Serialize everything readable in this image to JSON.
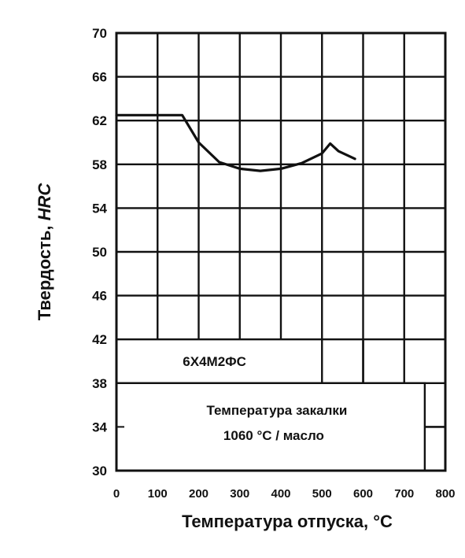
{
  "chart_data": {
    "type": "line",
    "title": "",
    "xlabel": "Температура отпуска, °С",
    "ylabel_prefix": "Твердость, ",
    "ylabel_italic": "HRC",
    "x_ticks": [
      "0",
      "100",
      "200",
      "300",
      "400",
      "500",
      "600",
      "700",
      "800"
    ],
    "y_ticks": [
      "70",
      "66",
      "62",
      "58",
      "54",
      "50",
      "46",
      "42",
      "38",
      "34",
      "30"
    ],
    "xlim": [
      0,
      800
    ],
    "ylim": [
      30,
      70
    ],
    "grid": true,
    "series": [
      {
        "x": [
          0,
          140,
          160,
          200,
          250,
          300,
          350,
          400,
          450,
          500,
          520,
          540,
          580
        ],
        "y": [
          62.5,
          62.5,
          62.5,
          60,
          58.2,
          57.6,
          57.4,
          57.6,
          58.1,
          59.0,
          59.9,
          59.2,
          58.5
        ]
      }
    ],
    "annotations": {
      "steel_grade": "6Х4М2ФС",
      "quench_line1": "Температура закалки",
      "quench_line2": "1060 °С / масло"
    }
  }
}
